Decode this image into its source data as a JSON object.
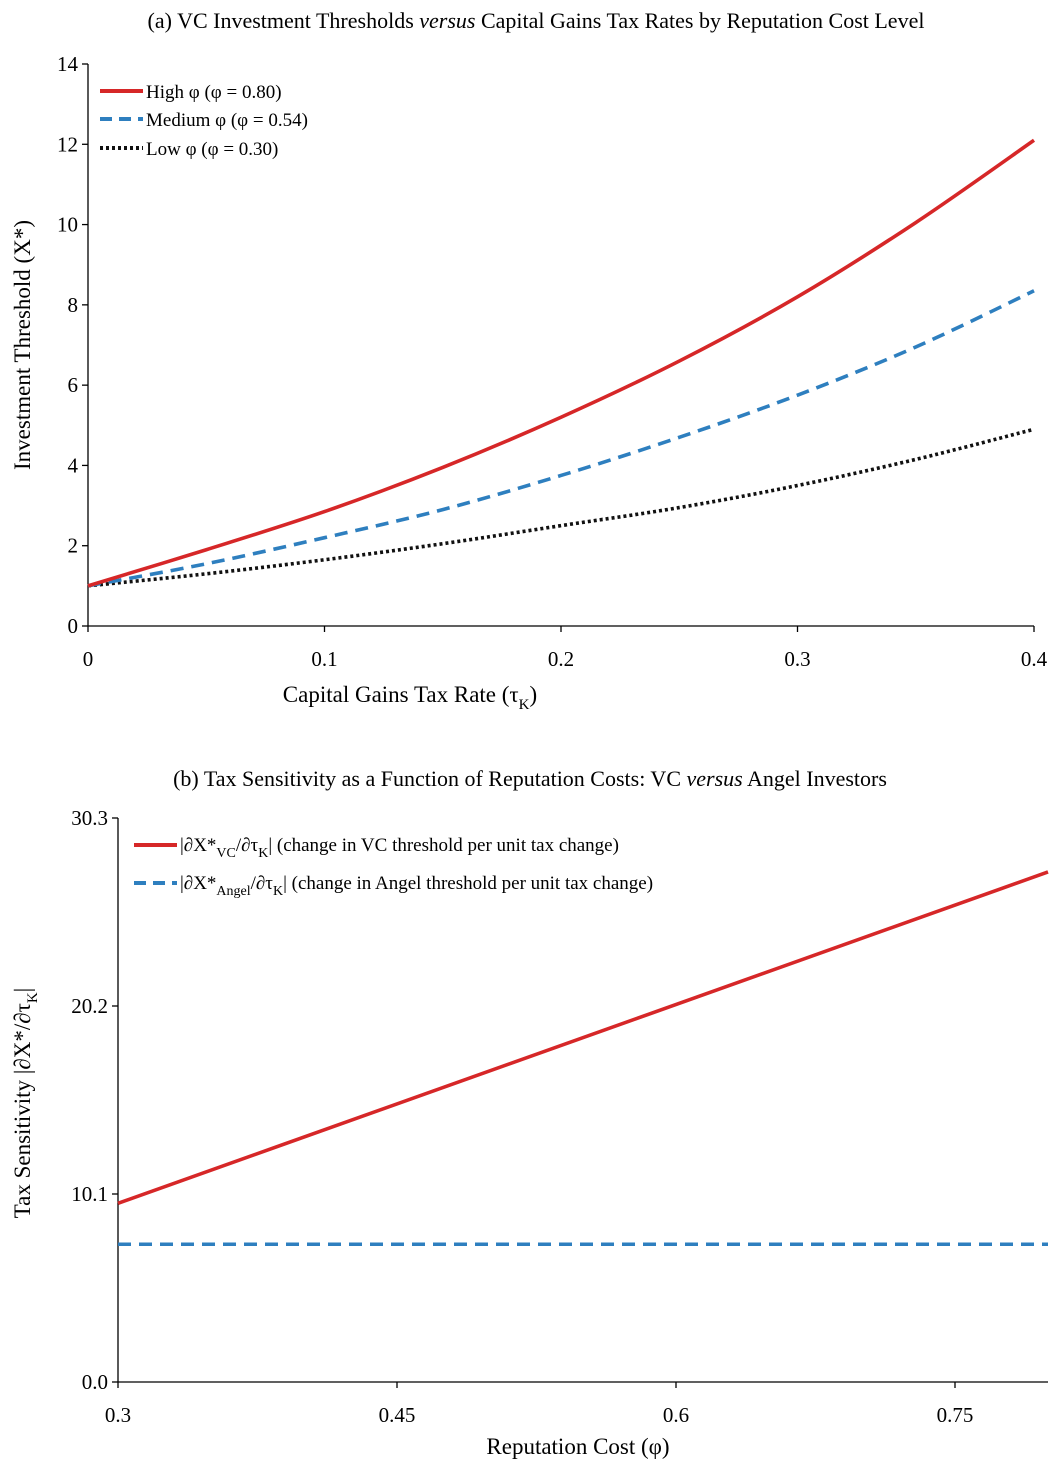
{
  "chart_data": [
    {
      "type": "line",
      "title": {
        "pre": "(a) VC Investment Thresholds ",
        "em": "versus",
        "post": " Capital Gains Tax Rates by Reputation Cost Level"
      },
      "xlabel": {
        "main": "Capital Gains Tax Rate (τ",
        "sub": "K",
        "close": ")"
      },
      "ylabel": "Investment Threshold (X*)",
      "xlim": [
        0,
        0.4
      ],
      "ylim": [
        0,
        14
      ],
      "xticks": [
        0,
        0.1,
        0.2,
        0.3,
        0.4
      ],
      "xtick_labels": [
        "0",
        "0.1",
        "0.2",
        "0.3",
        "0.4"
      ],
      "yticks": [
        0,
        2,
        4,
        6,
        8,
        10,
        12,
        14
      ],
      "ytick_labels": [
        "0",
        "2",
        "4",
        "6",
        "8",
        "10",
        "12",
        "14"
      ],
      "legend_position": "top-left",
      "grid": false,
      "x": [
        0,
        0.05,
        0.1,
        0.15,
        0.2,
        0.25,
        0.3,
        0.35,
        0.4
      ],
      "series": [
        {
          "name": "High φ (φ = 0.80)",
          "style": "solid",
          "color": "#d62728",
          "values": [
            1.0,
            1.9,
            2.85,
            3.95,
            5.2,
            6.6,
            8.2,
            10.05,
            12.1
          ]
        },
        {
          "name": "Medium φ (φ = 0.54)",
          "style": "dashed",
          "color": "#2e7fbf",
          "values": [
            1.0,
            1.55,
            2.2,
            2.9,
            3.75,
            4.7,
            5.75,
            6.95,
            8.35
          ]
        },
        {
          "name": "Low φ (φ = 0.30)",
          "style": "dotted",
          "color": "#111111",
          "values": [
            1.0,
            1.3,
            1.65,
            2.05,
            2.5,
            2.95,
            3.5,
            4.15,
            4.9
          ]
        }
      ]
    },
    {
      "type": "line",
      "title": {
        "pre": "(b) Tax Sensitivity as a Function of Reputation Costs: VC ",
        "em": "versus",
        "post": " Angel Investors"
      },
      "xlabel": {
        "main": "Reputation Cost (φ)"
      },
      "ylabel": {
        "main": "Tax Sensitivity |∂X*/∂τ",
        "sub": "K",
        "close": "|"
      },
      "xlim": [
        0.3,
        0.8
      ],
      "ylim": [
        0,
        30.3
      ],
      "xticks": [
        0.3,
        0.45,
        0.6,
        0.75
      ],
      "xtick_labels": [
        "0.3",
        "0.45",
        "0.6",
        "0.75"
      ],
      "yticks": [
        0,
        10.1,
        20.2,
        30.3
      ],
      "ytick_labels": [
        "0.0",
        "10.1",
        "20.2",
        "30.3"
      ],
      "legend_position": "top-left",
      "grid": false,
      "x": [
        0.3,
        0.8
      ],
      "series": [
        {
          "name": "|∂X*VC/∂τK| (change in VC threshold per unit tax change)",
          "legend": {
            "a": "|∂X*",
            "sub1": "VC",
            "b": "/∂τ",
            "sub2": "K",
            "c": "| (change in VC threshold per unit tax change)"
          },
          "style": "solid",
          "color": "#d62728",
          "values": [
            9.6,
            27.4
          ]
        },
        {
          "name": "|∂X*Angel/∂τK| (change in Angel threshold per unit tax change)",
          "legend": {
            "a": "|∂X*",
            "sub1": "Angel",
            "b": "/∂τ",
            "sub2": "K",
            "c": "| (change in Angel threshold per unit tax change)"
          },
          "style": "dashed",
          "color": "#2e7fbf",
          "values": [
            7.4,
            7.4
          ]
        }
      ]
    }
  ]
}
